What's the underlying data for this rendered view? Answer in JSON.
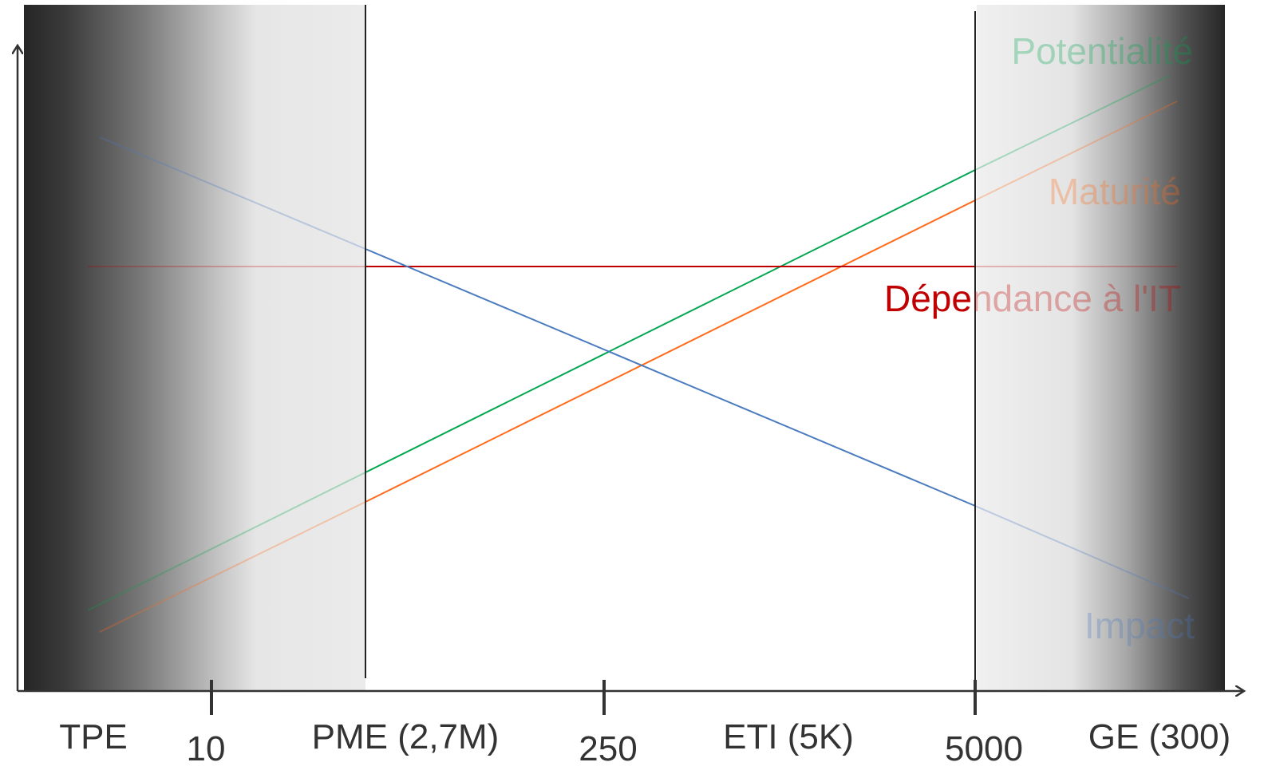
{
  "x_ticks": [
    "10",
    "250",
    "5000"
  ],
  "categories": [
    "TPE",
    "PME (2,7M)",
    "ETI (5K)",
    "GE (300)"
  ],
  "series": [
    {
      "name": "Potentialité",
      "color": "#00a650",
      "trend": "increasing"
    },
    {
      "name": "Maturité",
      "color": "#ff6b1a",
      "trend": "increasing"
    },
    {
      "name": "Dépendance à l'IT",
      "color": "#c00000",
      "trend": "flat"
    },
    {
      "name": "Impact",
      "color": "#4a7bbf",
      "trend": "decreasing"
    }
  ],
  "colors": {
    "shade_dark": "#2b2b2b",
    "shade_light": "#ebebeb",
    "axis": "#333333",
    "label": "#333333"
  }
}
